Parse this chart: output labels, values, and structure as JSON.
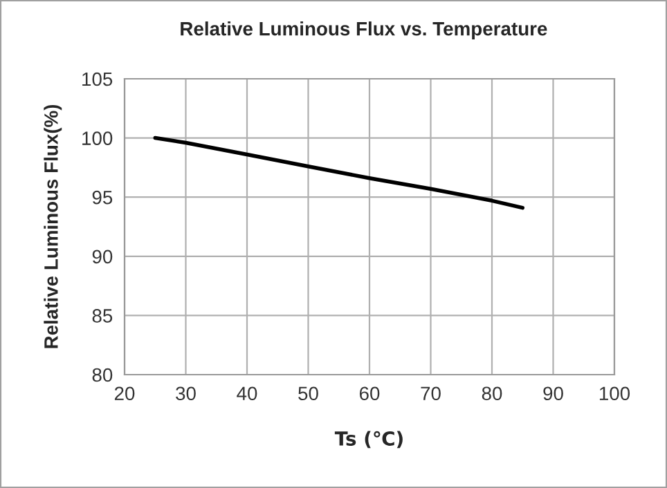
{
  "chart_data": {
    "type": "line",
    "title": "Relative Luminous Flux vs. Temperature",
    "xlabel": "Ts (℃)",
    "ylabel": "Relative Luminous Flux(%)",
    "x": [
      25,
      30,
      40,
      50,
      60,
      70,
      80,
      85
    ],
    "series": [
      {
        "color": "#000000",
        "values": [
          100,
          99.6,
          98.6,
          97.6,
          96.6,
          95.7,
          94.7,
          94.1
        ]
      }
    ],
    "xlim": [
      20,
      100
    ],
    "xticks": [
      20,
      30,
      40,
      50,
      60,
      70,
      80,
      90,
      100
    ],
    "ylim": [
      80,
      105
    ],
    "yticks": [
      80,
      85,
      90,
      95,
      100,
      105
    ],
    "grid": true,
    "marker": "none",
    "line_style": "solid"
  }
}
